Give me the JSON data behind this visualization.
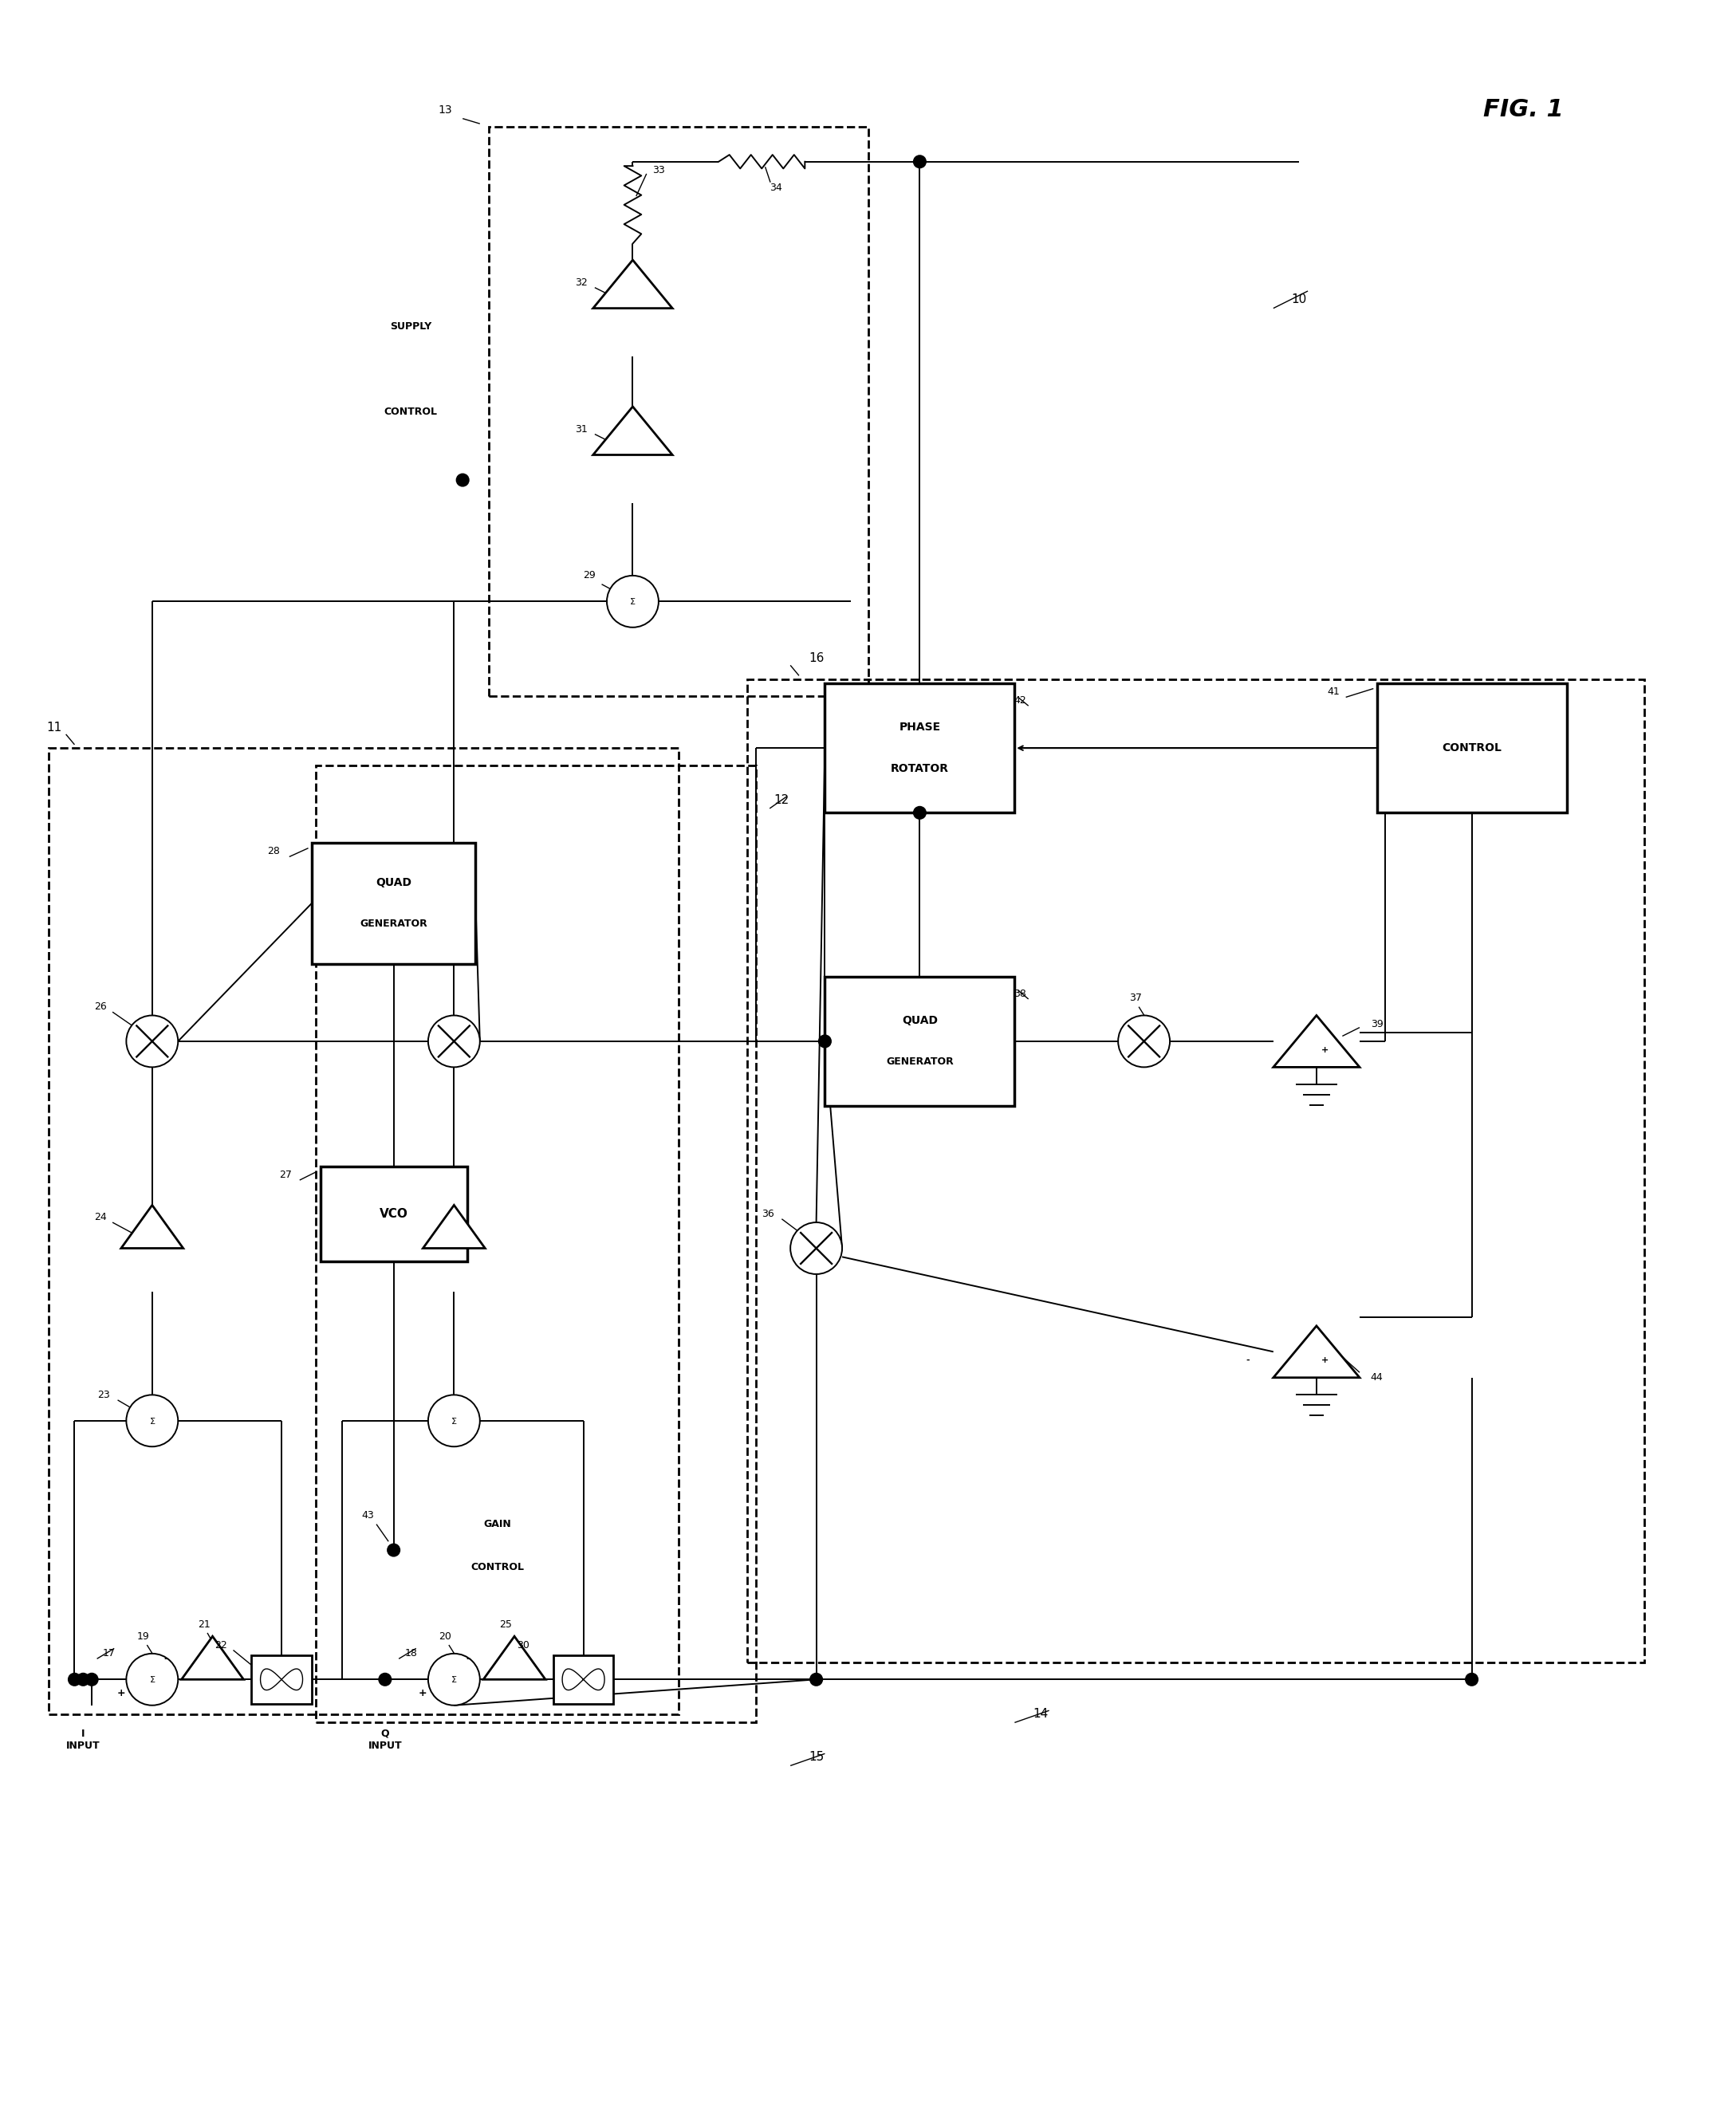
{
  "fig_width": 21.77,
  "fig_height": 26.4,
  "bg": "#ffffff",
  "lc": "#000000",
  "fig_label": "FIG. 1",
  "ref10": "10",
  "ref11": "11",
  "ref12": "12",
  "ref13": "13",
  "ref14": "14",
  "ref15": "15",
  "ref16": "16",
  "supply_control": "SUPPLY\nCONTROL",
  "gain_control": "GAIN\nCONTROL",
  "vco_label": "VCO",
  "quad_gen_label1": "QUAD\nGENERATOR",
  "quad_gen_label2": "QUAD\nGENERATOR",
  "phase_rotator_label": "PHASE\nROTATOR",
  "control_label": "CONTROL",
  "i_input_label": "I\nINPUT",
  "q_input_label": "Q\nINPUT",
  "n17": "17",
  "n18": "18",
  "n19": "19",
  "n21": "21",
  "n22": "22",
  "n23": "23",
  "n24": "24",
  "n26": "26",
  "n27": "27",
  "n28": "28",
  "n29": "29",
  "n31": "31",
  "n32": "32",
  "n33": "33",
  "n34": "34",
  "n36": "36",
  "n37": "37",
  "n38": "38",
  "n39": "39",
  "n41": "41",
  "n42": "42",
  "n43": "43",
  "n44": "44"
}
